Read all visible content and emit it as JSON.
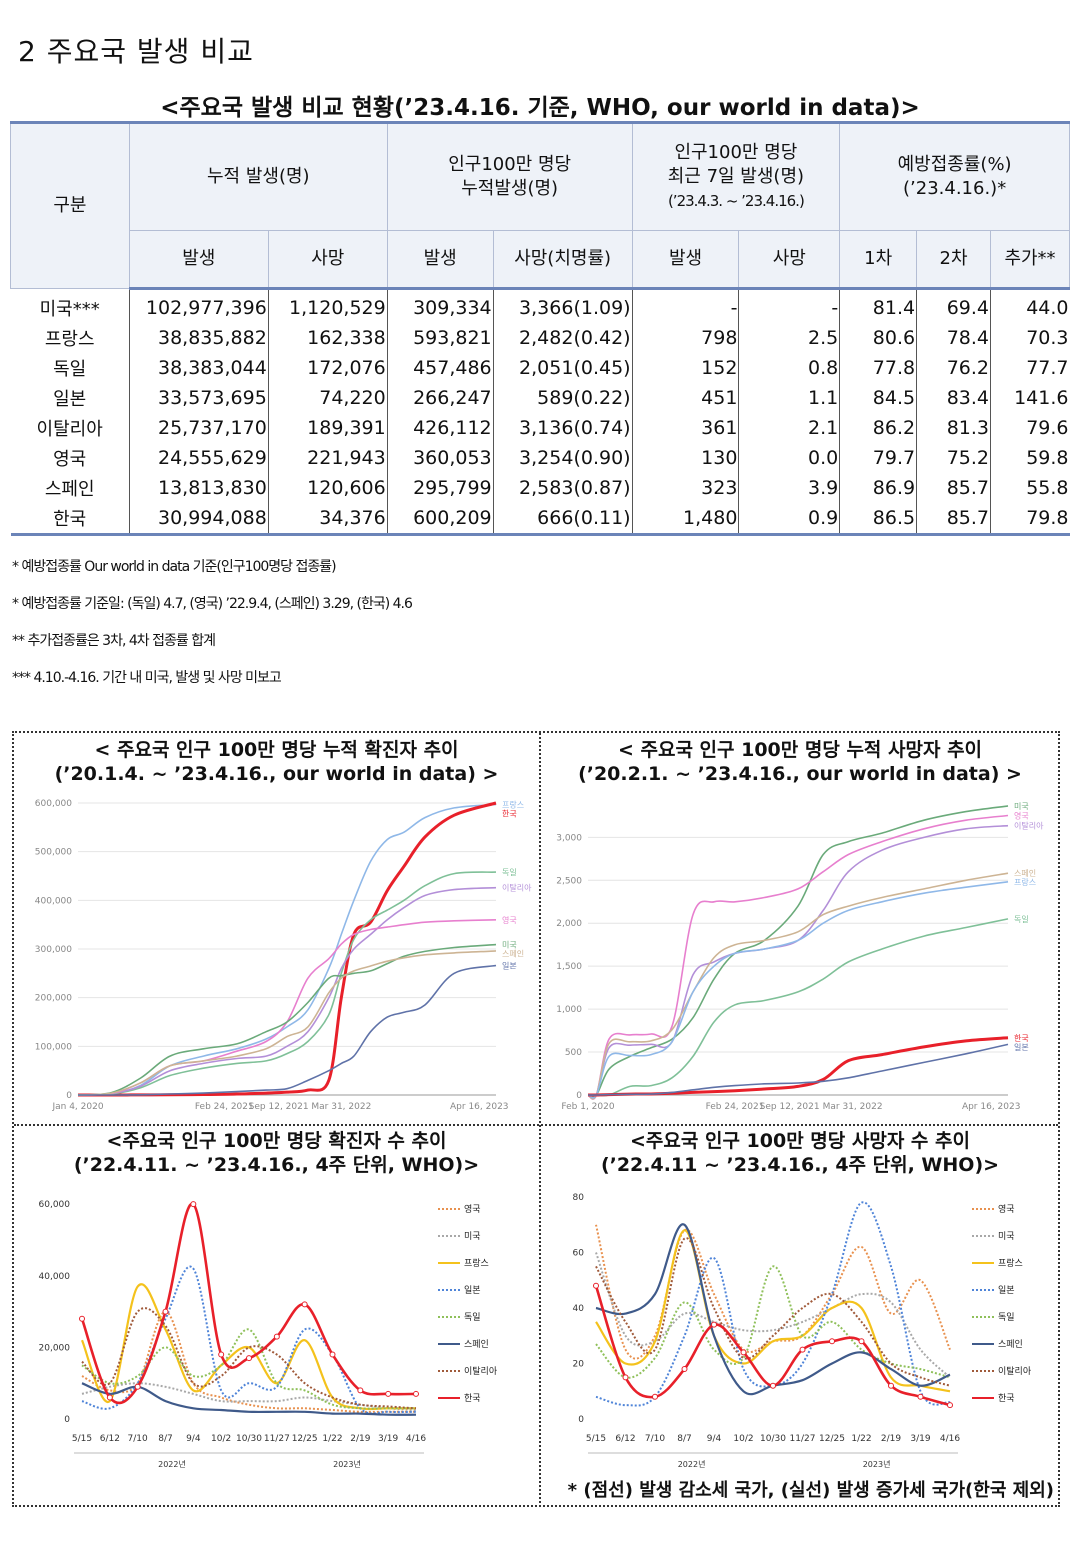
{
  "section_title": "2 주요국 발생 비교",
  "table_title": "<주요국 발생 비교 현황(’23.4.16. 기준, WHO, our world in data)>",
  "table": {
    "h_category": "구분",
    "h_cumulative": "누적 발생(명)",
    "h_per_million_1": "인구100만 명당",
    "h_per_million_2": "누적발생(명)",
    "h_recent_1": "인구100만 명당",
    "h_recent_2": "최근 7일 발생(명)",
    "h_recent_3": "(’23.4.3. ~ ’23.4.16.)",
    "h_vacc_1": "예방접종률(%)",
    "h_vacc_2": "(’23.4.16.)*",
    "sub": [
      "발생",
      "사망",
      "발생",
      "사망(치명률)",
      "발생",
      "사망",
      "1차",
      "2차",
      "추가**"
    ],
    "rows": [
      {
        "country": "미국***",
        "cells": [
          "102,977,396",
          "1,120,529",
          "309,334",
          "3,366(1.09)",
          "-",
          "-",
          "81.4",
          "69.4",
          "44.0"
        ]
      },
      {
        "country": "프랑스",
        "cells": [
          "38,835,882",
          "162,338",
          "593,821",
          "2,482(0.42)",
          "798",
          "2.5",
          "80.6",
          "78.4",
          "70.3"
        ]
      },
      {
        "country": "독일",
        "cells": [
          "38,383,044",
          "172,076",
          "457,486",
          "2,051(0.45)",
          "152",
          "0.8",
          "77.8",
          "76.2",
          "77.7"
        ]
      },
      {
        "country": "일본",
        "cells": [
          "33,573,695",
          "74,220",
          "266,247",
          "589(0.22)",
          "451",
          "1.1",
          "84.5",
          "83.4",
          "141.6"
        ]
      },
      {
        "country": "이탈리아",
        "cells": [
          "25,737,170",
          "189,391",
          "426,112",
          "3,136(0.74)",
          "361",
          "2.1",
          "86.2",
          "81.3",
          "79.6"
        ]
      },
      {
        "country": "영국",
        "cells": [
          "24,555,629",
          "221,943",
          "360,053",
          "3,254(0.90)",
          "130",
          "0.0",
          "79.7",
          "75.2",
          "59.8"
        ]
      },
      {
        "country": "스페인",
        "cells": [
          "13,813,830",
          "120,606",
          "295,799",
          "2,583(0.87)",
          "323",
          "3.9",
          "86.9",
          "85.7",
          "55.8"
        ]
      },
      {
        "country": "한국",
        "cells": [
          "30,994,088",
          "34,376",
          "600,209",
          "666(0.11)",
          "1,480",
          "0.9",
          "86.5",
          "85.7",
          "79.8"
        ]
      }
    ]
  },
  "notes": [
    "* 예방접종률 Our world in data 기준(인구100명당 접종률)",
    "* 예방접종률 기준일: (독일) 4.7, (영국) ’22.9.4, (스페인) 3.29, (한국) 4.6",
    "** 추가접종률은 3차, 4차 접종률 합계",
    "*** 4.10.-4.16. 기간 내 미국, 발생 및 사망 미보고"
  ],
  "panel_titles": [
    "< 주요국 인구 100만 명당 누적 확진자 추이\n(’20.1.4. ~ ’23.4.16., our world in data) >",
    "< 주요국 인구 100만 명당 누적 사망자 추이\n(’20.2.1. ~ ’23.4.16., our world in data) >",
    "<주요국 인구 100만 명당 확진자 수 추이\n(’22.4.11. ~ ’23.4.16., 4주 단위, WHO)>",
    "<주요국 인구 100만 명당 사망자 수 추이\n(’22.4.11 ~ ’23.4.16., 4주 단위, WHO)>"
  ],
  "footnote": "* (점선) 발생 감소세 국가, (실선) 발생 증가세 국가(한국 제외)",
  "colors": {
    "프랑스": "#8fb8e8",
    "한국": "#e8202a",
    "독일": "#7fc098",
    "이탈리아": "#b38fd8",
    "영국": "#e77fce",
    "미국": "#6aaa7a",
    "스페인": "#cdb494",
    "일본": "#5f72a8"
  },
  "chart_data": [
    {
      "type": "line",
      "title": "< 주요국 인구 100만 명당 누적 확진자 추이 (’20.1.4. ~ ’23.4.16., our world in data) >",
      "x_ticks": [
        "Jan 4, 2020",
        "Feb 24, 2021",
        "Sep 12, 2021",
        "Mar 31, 2022",
        "Apr 16, 2023"
      ],
      "x_tick_pos": [
        0,
        0.35,
        0.48,
        0.63,
        0.96
      ],
      "y_ticks": [
        "0",
        "100,000",
        "200,000",
        "300,000",
        "400,000",
        "500,000",
        "600,000"
      ],
      "ylim": [
        0,
        600000
      ],
      "x": [
        0,
        0.08,
        0.15,
        0.22,
        0.3,
        0.38,
        0.45,
        0.5,
        0.55,
        0.6,
        0.63,
        0.66,
        0.7,
        0.74,
        0.78,
        0.83,
        0.9,
        1
      ],
      "series": [
        {
          "name": "프랑스",
          "values": [
            0,
            2000,
            20000,
            60000,
            80000,
            95000,
            115000,
            140000,
            175000,
            260000,
            330000,
            400000,
            480000,
            525000,
            540000,
            570000,
            590000,
            597000
          ]
        },
        {
          "name": "한국",
          "values": [
            0,
            0,
            300,
            500,
            1000,
            2000,
            4000,
            6000,
            10000,
            30000,
            200000,
            330000,
            355000,
            420000,
            470000,
            530000,
            575000,
            600000
          ]
        },
        {
          "name": "독일",
          "values": [
            0,
            2000,
            15000,
            40000,
            55000,
            65000,
            70000,
            85000,
            110000,
            165000,
            250000,
            320000,
            360000,
            380000,
            400000,
            430000,
            455000,
            458000
          ]
        },
        {
          "name": "이탈리아",
          "values": [
            0,
            3000,
            18000,
            50000,
            65000,
            75000,
            80000,
            100000,
            130000,
            200000,
            260000,
            300000,
            330000,
            360000,
            385000,
            410000,
            422000,
            426000
          ]
        },
        {
          "name": "영국",
          "values": [
            0,
            3000,
            25000,
            60000,
            70000,
            90000,
            110000,
            150000,
            240000,
            280000,
            310000,
            330000,
            340000,
            345000,
            350000,
            355000,
            358000,
            360000
          ]
        },
        {
          "name": "미국",
          "values": [
            0,
            5000,
            35000,
            80000,
            95000,
            105000,
            130000,
            150000,
            190000,
            240000,
            245000,
            250000,
            255000,
            270000,
            285000,
            295000,
            303000,
            309000
          ]
        },
        {
          "name": "스페인",
          "values": [
            0,
            4000,
            25000,
            60000,
            70000,
            80000,
            95000,
            120000,
            140000,
            210000,
            240000,
            255000,
            265000,
            275000,
            282000,
            288000,
            292000,
            296000
          ]
        },
        {
          "name": "일본",
          "values": [
            0,
            0,
            500,
            2000,
            4000,
            7000,
            10000,
            13000,
            30000,
            50000,
            65000,
            80000,
            130000,
            160000,
            170000,
            185000,
            250000,
            266000
          ]
        }
      ]
    },
    {
      "type": "line",
      "title": "< 주요국 인구 100만 명당 누적 사망자 추이 (’20.2.1. ~ ’23.4.16., our world in data) >",
      "x_ticks": [
        "Feb 1, 2020",
        "Feb 24, 2021",
        "Sep 12, 2021",
        "Mar 31, 2022",
        "Apr 16, 2023"
      ],
      "x_tick_pos": [
        0,
        0.35,
        0.48,
        0.63,
        0.96
      ],
      "y_ticks": [
        "0",
        "500",
        "1,000",
        "1,500",
        "2,000",
        "2,500",
        "3,000"
      ],
      "ylim": [
        0,
        3400
      ],
      "x": [
        0,
        0.02,
        0.05,
        0.1,
        0.15,
        0.2,
        0.25,
        0.3,
        0.35,
        0.42,
        0.5,
        0.56,
        0.62,
        0.7,
        0.8,
        0.9,
        1
      ],
      "series": [
        {
          "name": "미국",
          "values": [
            0,
            0,
            300,
            450,
            550,
            650,
            900,
            1350,
            1650,
            1800,
            2200,
            2800,
            2950,
            3050,
            3200,
            3300,
            3366
          ]
        },
        {
          "name": "이탈리아",
          "values": [
            0,
            0,
            550,
            580,
            590,
            620,
            1400,
            1550,
            1650,
            1700,
            1800,
            2150,
            2600,
            2850,
            3000,
            3100,
            3136
          ]
        },
        {
          "name": "영국",
          "values": [
            0,
            0,
            650,
            700,
            710,
            800,
            2100,
            2250,
            2250,
            2300,
            2400,
            2600,
            2800,
            2950,
            3100,
            3200,
            3254
          ]
        },
        {
          "name": "스페인",
          "values": [
            0,
            0,
            600,
            620,
            630,
            760,
            1200,
            1600,
            1750,
            1800,
            1900,
            2100,
            2200,
            2300,
            2400,
            2500,
            2583
          ]
        },
        {
          "name": "프랑스",
          "values": [
            0,
            0,
            450,
            460,
            470,
            620,
            1200,
            1500,
            1650,
            1700,
            1800,
            2000,
            2150,
            2250,
            2350,
            2420,
            2482
          ]
        },
        {
          "name": "독일",
          "values": [
            0,
            0,
            0,
            100,
            110,
            200,
            450,
            850,
            1050,
            1100,
            1200,
            1350,
            1550,
            1700,
            1850,
            1950,
            2051
          ]
        },
        {
          "name": "한국",
          "values": [
            0,
            0,
            5,
            10,
            12,
            20,
            30,
            40,
            50,
            70,
            100,
            180,
            400,
            470,
            560,
            630,
            666
          ]
        },
        {
          "name": "일본",
          "values": [
            0,
            0,
            5,
            8,
            10,
            30,
            60,
            90,
            110,
            130,
            140,
            160,
            200,
            280,
            380,
            480,
            589
          ]
        }
      ]
    },
    {
      "type": "line",
      "title": "<주요국 인구 100만 명당 확진자 수 추이 (’22.4.11. ~ ’23.4.16., 4주 단위, WHO)>",
      "categories": [
        "5/15",
        "6/12",
        "7/10",
        "8/7",
        "9/4",
        "10/2",
        "10/30",
        "11/27",
        "12/25",
        "1/22",
        "2/19",
        "3/19",
        "4/16"
      ],
      "year_labels": [
        "2022년",
        "2023년"
      ],
      "y_ticks": [
        "0",
        "20,000",
        "40,000",
        "60,000"
      ],
      "ylim": [
        0,
        62000
      ],
      "series": [
        {
          "name": "영국",
          "style": "dotted",
          "color": "#e8914f",
          "values": [
            12000,
            8000,
            10000,
            30000,
            10000,
            6000,
            4000,
            3000,
            3000,
            2500,
            2000,
            2000,
            2000
          ]
        },
        {
          "name": "미국",
          "style": "dotted",
          "color": "#a8a8a8",
          "values": [
            7000,
            9000,
            10000,
            9000,
            7000,
            5000,
            5000,
            5000,
            6000,
            5000,
            4000,
            3000,
            2500
          ]
        },
        {
          "name": "프랑스",
          "style": "solid",
          "color": "#f4c21c",
          "values": [
            22000,
            5000,
            37000,
            25000,
            8000,
            15000,
            20000,
            10000,
            22000,
            6000,
            3000,
            3000,
            3000
          ]
        },
        {
          "name": "일본",
          "style": "dotted",
          "color": "#4f84d8",
          "values": [
            5000,
            3000,
            10000,
            28000,
            42000,
            8000,
            10000,
            9000,
            25000,
            18000,
            3000,
            2000,
            2000
          ]
        },
        {
          "name": "독일",
          "style": "dotted",
          "color": "#8fc05a",
          "values": [
            15000,
            10000,
            12000,
            20000,
            12000,
            15000,
            25000,
            10000,
            8000,
            4000,
            3000,
            3000,
            3000
          ]
        },
        {
          "name": "스페인",
          "style": "solid",
          "color": "#3f5a8a",
          "values": [
            10000,
            7000,
            9000,
            5000,
            3000,
            2500,
            2000,
            2000,
            2000,
            1500,
            1500,
            1200,
            1200
          ]
        },
        {
          "name": "이탈리아",
          "style": "dotted",
          "color": "#a05a3a",
          "values": [
            16000,
            10000,
            30000,
            26000,
            10000,
            12000,
            20000,
            18000,
            10000,
            6000,
            4000,
            3500,
            3000
          ]
        },
        {
          "name": "한국",
          "style": "solid",
          "color": "#e8202a",
          "values": [
            28000,
            6000,
            9000,
            30000,
            60000,
            18000,
            17000,
            23000,
            32000,
            18000,
            8000,
            7000,
            7000
          ]
        }
      ]
    },
    {
      "type": "line",
      "title": "<주요국 인구 100만 명당 사망자 수 추이 (’22.4.11 ~ ’23.4.16., 4주 단위, WHO)>",
      "categories": [
        "5/15",
        "6/12",
        "7/10",
        "8/7",
        "9/4",
        "10/2",
        "10/30",
        "11/27",
        "12/25",
        "1/22",
        "2/19",
        "3/19",
        "4/16"
      ],
      "year_labels": [
        "2022년",
        "2023년"
      ],
      "y_ticks": [
        "0",
        "20",
        "40",
        "60",
        "80"
      ],
      "ylim": [
        0,
        80
      ],
      "series": [
        {
          "name": "영국",
          "style": "dotted",
          "color": "#e8914f",
          "values": [
            70,
            25,
            30,
            68,
            45,
            25,
            28,
            30,
            45,
            62,
            38,
            50,
            25
          ]
        },
        {
          "name": "미국",
          "style": "dotted",
          "color": "#a8a8a8",
          "values": [
            60,
            30,
            28,
            38,
            35,
            32,
            32,
            35,
            40,
            45,
            42,
            25,
            15
          ]
        },
        {
          "name": "프랑스",
          "style": "solid",
          "color": "#f4c21c",
          "values": [
            35,
            20,
            28,
            68,
            30,
            20,
            28,
            30,
            40,
            40,
            15,
            12,
            10
          ]
        },
        {
          "name": "일본",
          "style": "dotted",
          "color": "#4f84d8",
          "values": [
            8,
            5,
            8,
            30,
            58,
            18,
            12,
            20,
            45,
            78,
            55,
            10,
            6
          ]
        },
        {
          "name": "독일",
          "style": "dotted",
          "color": "#8fc05a",
          "values": [
            27,
            15,
            22,
            42,
            25,
            22,
            55,
            30,
            35,
            25,
            20,
            18,
            15
          ]
        },
        {
          "name": "스페인",
          "style": "solid",
          "color": "#3f5a8a",
          "values": [
            40,
            38,
            45,
            70,
            30,
            10,
            12,
            14,
            20,
            24,
            18,
            12,
            16
          ]
        },
        {
          "name": "이탈리아",
          "style": "dotted",
          "color": "#a05a3a",
          "values": [
            55,
            35,
            25,
            65,
            40,
            22,
            30,
            40,
            45,
            35,
            20,
            15,
            12
          ]
        },
        {
          "name": "한국",
          "style": "solid",
          "color": "#e8202a",
          "values": [
            48,
            15,
            8,
            18,
            34,
            24,
            12,
            25,
            28,
            28,
            12,
            8,
            5
          ]
        }
      ]
    }
  ]
}
